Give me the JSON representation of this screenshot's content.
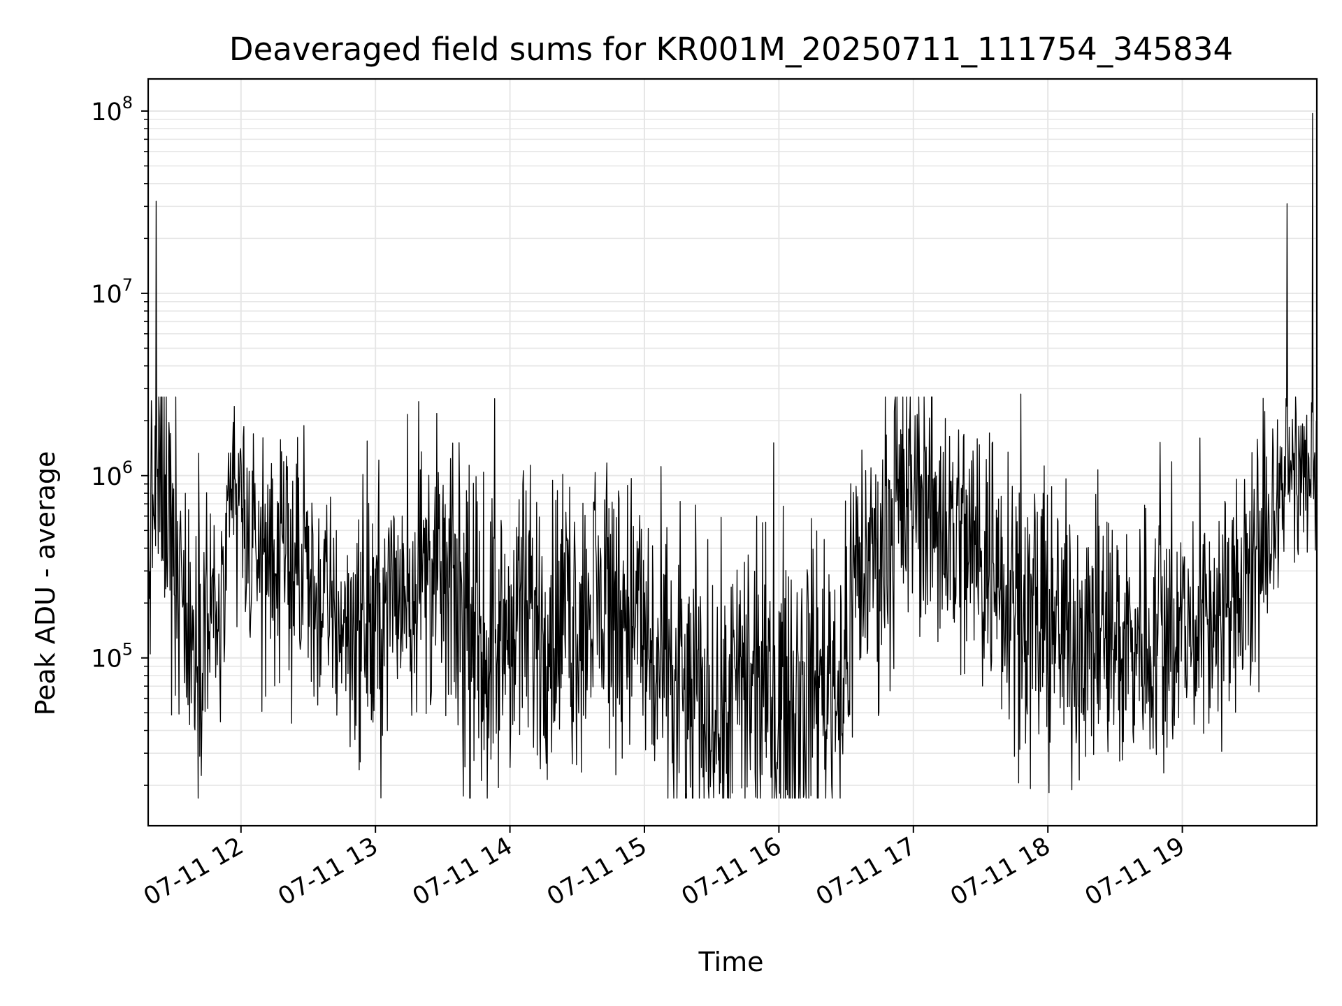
{
  "chart_data": {
    "type": "line",
    "title": "Deaveraged field sums for KR001M_20250711_111754_345834",
    "xlabel": "Time",
    "ylabel": "Peak ADU - average",
    "yscale": "log",
    "grid": true,
    "line_color": "#000000",
    "grid_color": "#e6e6e6",
    "x_tick_labels": [
      "07-11 12",
      "07-11 13",
      "07-11 14",
      "07-11 15",
      "07-11 16",
      "07-11 17",
      "07-11 18",
      "07-11 19"
    ],
    "x_ticks_hours": [
      12,
      13,
      14,
      15,
      16,
      17,
      18,
      19
    ],
    "xlim_hours": [
      11.31,
      20.0
    ],
    "y_ticks": [
      {
        "value": 100000,
        "base": "10",
        "exp": "5"
      },
      {
        "value": 1000000,
        "base": "10",
        "exp": "6"
      },
      {
        "value": 10000000,
        "base": "10",
        "exp": "7"
      },
      {
        "value": 100000000,
        "base": "10",
        "exp": "8"
      }
    ],
    "ylim": [
      12000,
      150000000
    ],
    "envelope": {
      "hours": [
        11.31,
        11.35,
        11.4,
        11.45,
        11.5,
        11.55,
        11.6,
        11.65,
        11.75,
        11.85,
        11.95,
        12.0,
        12.05,
        12.2,
        12.4,
        12.6,
        12.8,
        13.0,
        13.2,
        13.4,
        13.55,
        13.7,
        13.9,
        14.1,
        14.3,
        14.5,
        14.7,
        14.9,
        15.1,
        15.3,
        15.5,
        15.7,
        15.9,
        16.1,
        16.3,
        16.5,
        16.55,
        16.7,
        16.9,
        17.0,
        17.2,
        17.4,
        17.6,
        17.7,
        17.8,
        17.9,
        18.1,
        18.3,
        18.5,
        18.7,
        18.9,
        19.1,
        19.3,
        19.5,
        19.6,
        19.65,
        19.7,
        19.8,
        19.9,
        20.0
      ],
      "median": [
        350000,
        700000,
        900000,
        800000,
        500000,
        350000,
        120000,
        130000,
        150000,
        180000,
        700000,
        900000,
        400000,
        350000,
        300000,
        200000,
        150000,
        150000,
        250000,
        300000,
        250000,
        120000,
        110000,
        150000,
        160000,
        170000,
        200000,
        200000,
        80000,
        60000,
        55000,
        60000,
        60000,
        70000,
        80000,
        80000,
        300000,
        350000,
        600000,
        800000,
        600000,
        400000,
        350000,
        300000,
        200000,
        150000,
        140000,
        130000,
        120000,
        130000,
        140000,
        150000,
        180000,
        250000,
        350000,
        500000,
        800000,
        1100000,
        1000000,
        1000000
      ],
      "spread": [
        0.9,
        1.0,
        1.0,
        1.0,
        1.0,
        1.0,
        0.9,
        0.8,
        0.8,
        0.8,
        0.7,
        0.7,
        0.8,
        0.8,
        0.8,
        0.8,
        0.8,
        0.9,
        0.9,
        0.9,
        0.9,
        1.0,
        1.0,
        1.0,
        1.0,
        1.0,
        1.0,
        1.0,
        1.0,
        1.0,
        1.0,
        1.0,
        1.0,
        1.0,
        1.0,
        1.0,
        1.0,
        0.9,
        0.9,
        0.9,
        0.9,
        1.0,
        1.0,
        1.0,
        1.0,
        1.0,
        0.9,
        0.9,
        0.9,
        0.9,
        0.9,
        0.8,
        0.8,
        0.8,
        0.8,
        0.6,
        0.5,
        0.5,
        0.5,
        0.5
      ]
    },
    "spikes": [
      {
        "hour": 11.37,
        "value": 32000000
      },
      {
        "hour": 19.78,
        "value": 31000000
      },
      {
        "hour": 19.97,
        "value": 97000000
      },
      {
        "hour": 17.8,
        "value": 2800000
      },
      {
        "hour": 11.95,
        "value": 2400000
      },
      {
        "hour": 15.31,
        "value": 18000
      },
      {
        "hour": 15.56,
        "value": 18000
      },
      {
        "hour": 11.62,
        "value": 43000
      },
      {
        "hour": 19.57,
        "value": 65000
      }
    ]
  }
}
